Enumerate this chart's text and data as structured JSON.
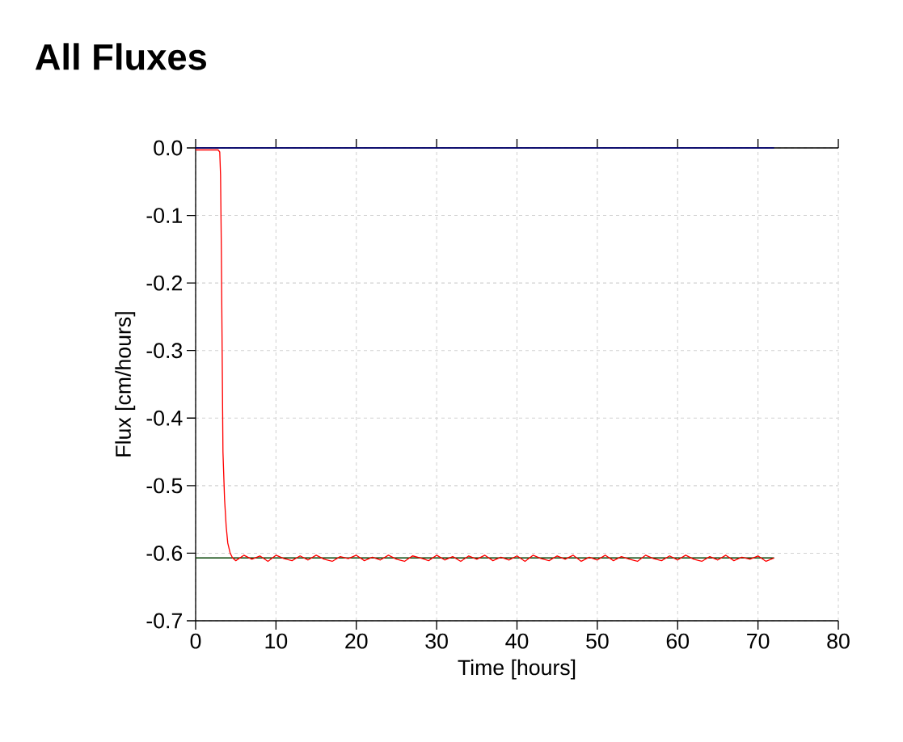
{
  "chart_data": {
    "type": "line",
    "title": "All Fluxes",
    "xlabel": "Time [hours]",
    "ylabel": "Flux [cm/hours]",
    "series": [
      {
        "color": "#000080",
        "x": [
          0,
          72
        ],
        "values": [
          0,
          0
        ]
      },
      {
        "color": "#004000",
        "x": [
          0,
          72
        ],
        "values": [
          -0.607,
          -0.607
        ]
      },
      {
        "color": "#ff0000",
        "x": [
          0,
          2.8,
          3.0,
          3.1,
          3.2,
          3.3,
          3.4,
          3.6,
          3.8,
          4.0,
          4.3,
          4.6,
          5,
          6,
          7,
          8,
          9,
          10,
          11,
          12,
          13,
          14,
          15,
          16,
          17,
          18,
          19,
          20,
          21,
          22,
          23,
          24,
          25,
          26,
          27,
          28,
          29,
          30,
          31,
          32,
          33,
          34,
          35,
          36,
          37,
          38,
          39,
          40,
          41,
          42,
          43,
          44,
          45,
          46,
          47,
          48,
          49,
          50,
          51,
          52,
          53,
          54,
          55,
          56,
          57,
          58,
          59,
          60,
          61,
          62,
          63,
          64,
          65,
          66,
          67,
          68,
          69,
          70,
          71,
          72
        ],
        "values": [
          -0.003,
          -0.003,
          -0.006,
          -0.04,
          -0.15,
          -0.3,
          -0.45,
          -0.52,
          -0.56,
          -0.585,
          -0.6,
          -0.607,
          -0.611,
          -0.603,
          -0.609,
          -0.604,
          -0.612,
          -0.603,
          -0.608,
          -0.611,
          -0.604,
          -0.61,
          -0.603,
          -0.609,
          -0.612,
          -0.605,
          -0.608,
          -0.603,
          -0.611,
          -0.606,
          -0.61,
          -0.603,
          -0.609,
          -0.612,
          -0.604,
          -0.607,
          -0.611,
          -0.603,
          -0.61,
          -0.605,
          -0.612,
          -0.604,
          -0.609,
          -0.603,
          -0.611,
          -0.606,
          -0.61,
          -0.604,
          -0.612,
          -0.603,
          -0.608,
          -0.611,
          -0.604,
          -0.609,
          -0.603,
          -0.612,
          -0.606,
          -0.61,
          -0.603,
          -0.611,
          -0.605,
          -0.609,
          -0.612,
          -0.603,
          -0.608,
          -0.611,
          -0.604,
          -0.61,
          -0.603,
          -0.609,
          -0.612,
          -0.605,
          -0.61,
          -0.603,
          -0.611,
          -0.606,
          -0.609,
          -0.604,
          -0.612,
          -0.607
        ]
      }
    ],
    "xlim": [
      0,
      80
    ],
    "ylim": [
      -0.7,
      0
    ],
    "xticks": [
      0,
      10,
      20,
      30,
      40,
      50,
      60,
      70,
      80
    ],
    "yticks": [
      {
        "value": -0.7,
        "label": "-0.7"
      },
      {
        "value": -0.6,
        "label": "-0.6"
      },
      {
        "value": -0.5,
        "label": "-0.5"
      },
      {
        "value": -0.4,
        "label": "-0.4"
      },
      {
        "value": -0.3,
        "label": "-0.3"
      },
      {
        "value": -0.2,
        "label": "-0.2"
      },
      {
        "value": -0.1,
        "label": "-0.1"
      },
      {
        "value": 0,
        "label": "0.0"
      }
    ],
    "grid": true,
    "marker": "none",
    "line_style": "solid"
  }
}
